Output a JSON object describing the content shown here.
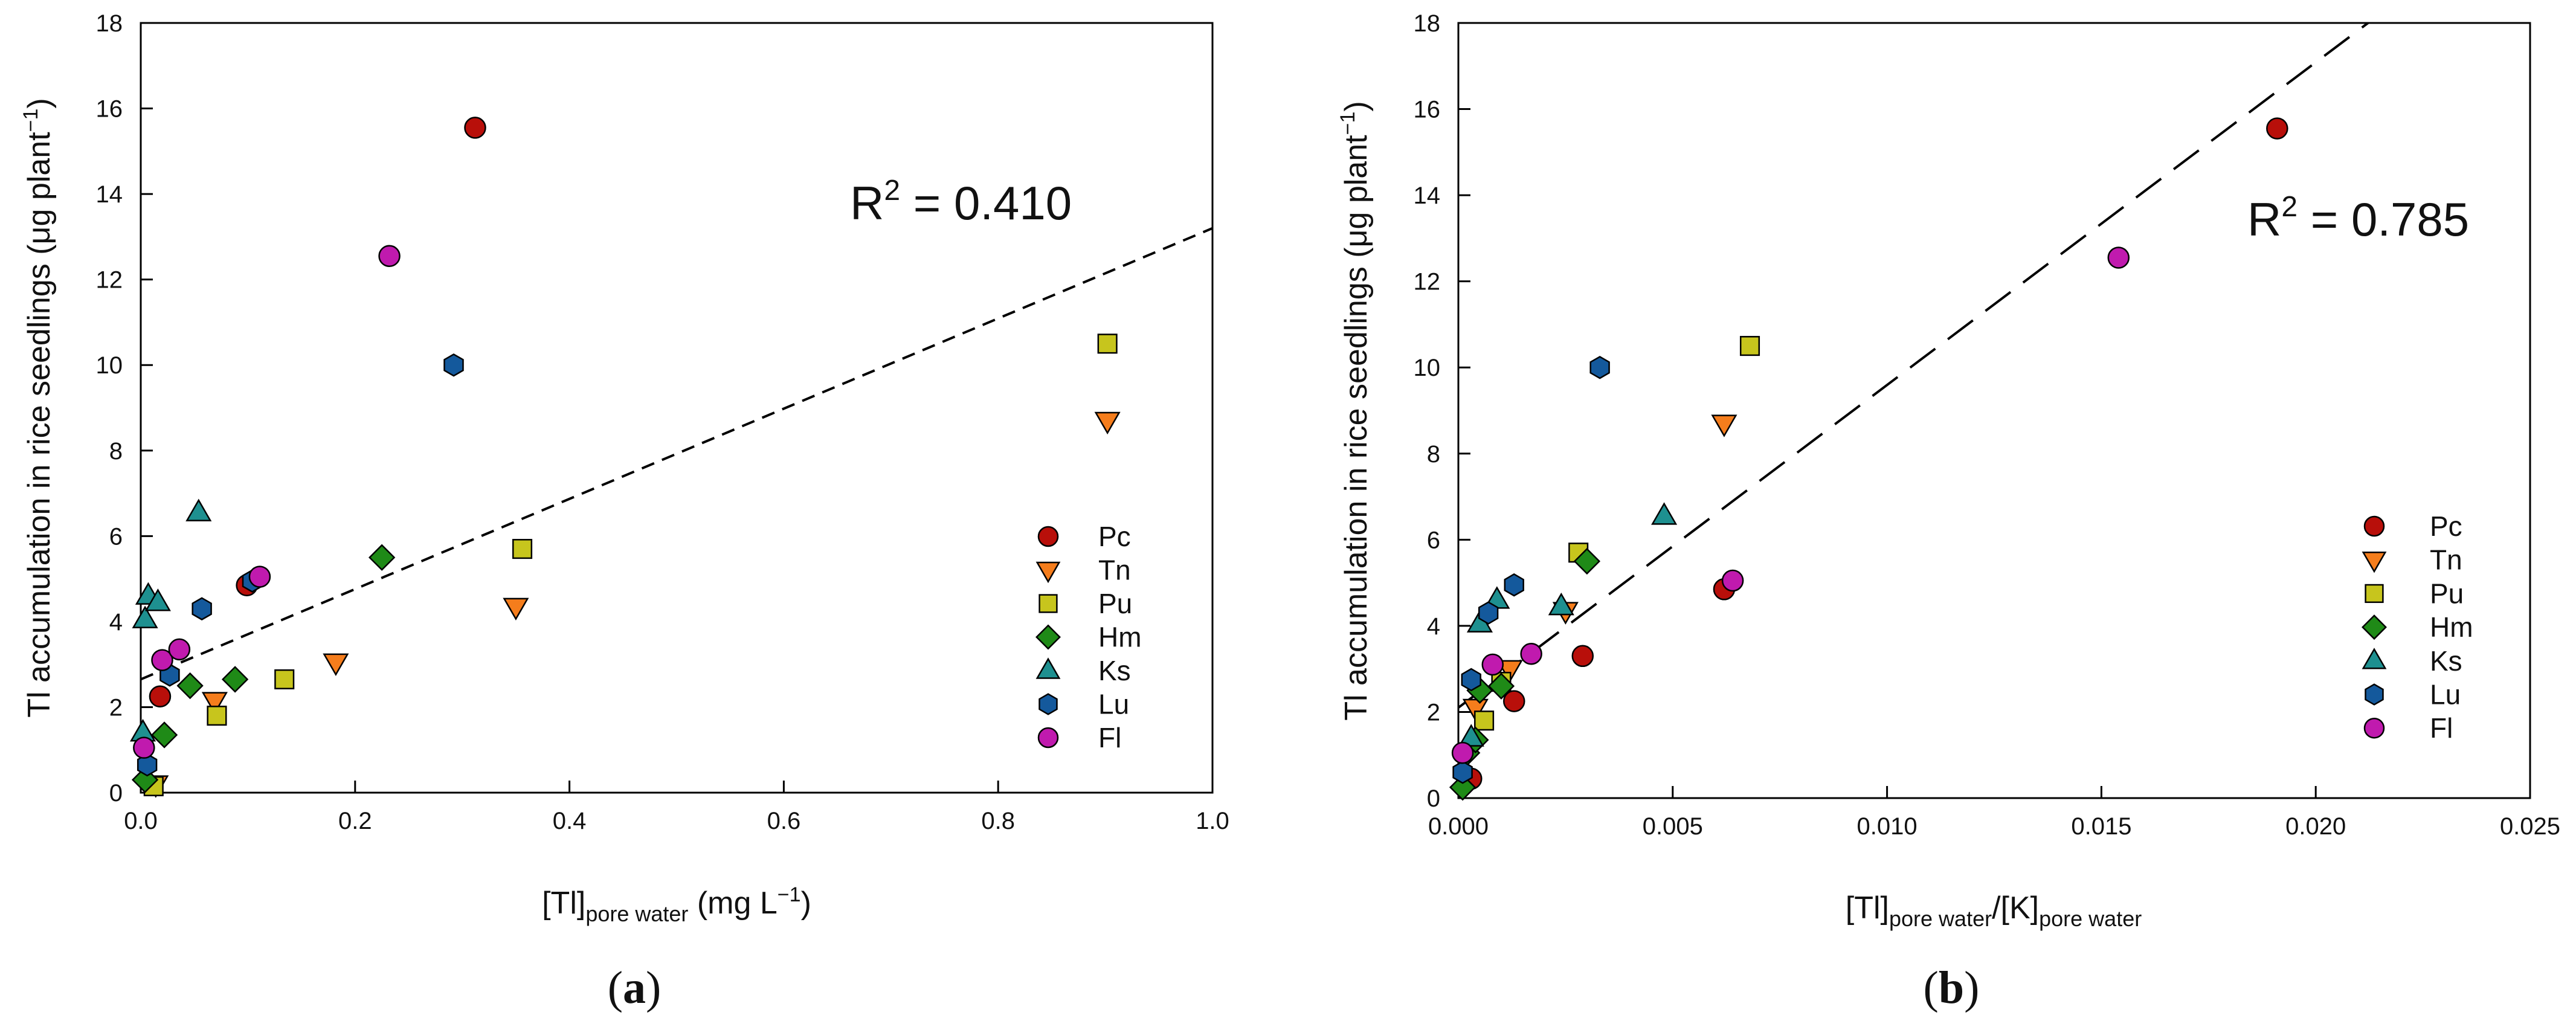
{
  "legend_labels": [
    "Pc",
    "Tn",
    "Pu",
    "Hm",
    "Ks",
    "Lu",
    "Fl"
  ],
  "colors": {
    "Pc": "#B80F0A",
    "Tn": "#F57D1C",
    "Pu": "#C7C51D",
    "Hm": "#1F8A17",
    "Ks": "#1E9090",
    "Lu": "#14599C",
    "Fl": "#C01AAE"
  },
  "markers": {
    "Pc": "circle",
    "Tn": "triangle-down",
    "Pu": "square",
    "Hm": "diamond",
    "Ks": "triangle-up",
    "Lu": "hexagon",
    "Fl": "circle"
  },
  "chart_data": [
    {
      "type": "scatter",
      "panel": "(a)",
      "panel_letter": "a",
      "xlabel_main": "[Tl]",
      "xlabel_sub": "pore water",
      "xlabel_unit": " (mg L",
      "xlabel_unit_sup": "−1",
      "xlabel_close": ")",
      "ylabel": "Tl accumulation in rice seedlings (μg plant",
      "ylabel_sup": "−1",
      "ylabel_close": ")",
      "xlim": [
        0.0,
        1.0
      ],
      "ylim": [
        0,
        18
      ],
      "xticks": [
        0.0,
        0.2,
        0.4,
        0.6,
        0.8,
        1.0
      ],
      "xtick_labels": [
        "0.0",
        "0.2",
        "0.4",
        "0.6",
        "0.8",
        "1.0"
      ],
      "yticks": [
        0,
        2,
        4,
        6,
        8,
        10,
        12,
        14,
        16,
        18
      ],
      "ytick_labels": [
        "0",
        "2",
        "4",
        "6",
        "8",
        "10",
        "12",
        "14",
        "16",
        "18"
      ],
      "r2_prefix": "R",
      "r2_sup": "2",
      "r2_value": " = 0.410",
      "fit_line": {
        "x": [
          0.0,
          1.0
        ],
        "y": [
          2.65,
          13.2
        ],
        "style": "short-dash"
      },
      "series": [
        {
          "name": "Pc",
          "points": [
            [
              0.018,
              2.25
            ],
            [
              0.099,
              4.85
            ],
            [
              0.312,
              15.55
            ]
          ]
        },
        {
          "name": "Tn",
          "points": [
            [
              0.014,
              0.2
            ],
            [
              0.069,
              2.15
            ],
            [
              0.182,
              3.05
            ],
            [
              0.35,
              4.35
            ],
            [
              0.902,
              8.7
            ]
          ]
        },
        {
          "name": "Pu",
          "points": [
            [
              0.012,
              0.15
            ],
            [
              0.071,
              1.8
            ],
            [
              0.134,
              2.65
            ],
            [
              0.356,
              5.7
            ],
            [
              0.902,
              10.5
            ]
          ]
        },
        {
          "name": "Hm",
          "points": [
            [
              0.004,
              0.3
            ],
            [
              0.022,
              1.35
            ],
            [
              0.046,
              2.5
            ],
            [
              0.088,
              2.65
            ],
            [
              0.225,
              5.5
            ]
          ]
        },
        {
          "name": "Ks",
          "points": [
            [
              0.002,
              1.4
            ],
            [
              0.004,
              4.05
            ],
            [
              0.007,
              4.6
            ],
            [
              0.016,
              4.45
            ],
            [
              0.054,
              6.55
            ]
          ]
        },
        {
          "name": "Lu",
          "points": [
            [
              0.006,
              0.65
            ],
            [
              0.027,
              2.75
            ],
            [
              0.057,
              4.3
            ],
            [
              0.104,
              4.95
            ],
            [
              0.292,
              10.0
            ]
          ]
        },
        {
          "name": "Fl",
          "points": [
            [
              0.003,
              1.05
            ],
            [
              0.02,
              3.1
            ],
            [
              0.036,
              3.35
            ],
            [
              0.111,
              5.05
            ],
            [
              0.232,
              12.55
            ]
          ]
        }
      ]
    },
    {
      "type": "scatter",
      "panel": "(b)",
      "panel_letter": "b",
      "xlabel_main": "[Tl]",
      "xlabel_sub": "pore water",
      "xlabel_mid": "/[K]",
      "xlabel_sub2": "pore water",
      "ylabel": "Tl accumulation in rice seedlings (μg plant",
      "ylabel_sup": "−1",
      "ylabel_close": ")",
      "xlim": [
        0.0,
        0.025
      ],
      "ylim": [
        0,
        18
      ],
      "xticks": [
        0.0,
        0.005,
        0.01,
        0.015,
        0.02,
        0.025
      ],
      "xtick_labels": [
        "0.000",
        "0.005",
        "0.010",
        "0.015",
        "0.020",
        "0.025"
      ],
      "yticks": [
        0,
        2,
        4,
        6,
        8,
        10,
        12,
        14,
        16,
        18
      ],
      "ytick_labels": [
        "0",
        "2",
        "4",
        "6",
        "8",
        "10",
        "12",
        "14",
        "16",
        "18"
      ],
      "r2_prefix": "R",
      "r2_sup": "2",
      "r2_value": " = 0.785",
      "fit_line": {
        "x": [
          0.0,
          0.02122
        ],
        "y": [
          2.1,
          18.0
        ],
        "style": "long-dash"
      },
      "series": [
        {
          "name": "Pc",
          "points": [
            [
              0.0003,
              0.45
            ],
            [
              0.0013,
              2.25
            ],
            [
              0.0029,
              3.3
            ],
            [
              0.0062,
              4.85
            ],
            [
              0.0191,
              15.55
            ]
          ]
        },
        {
          "name": "Tn",
          "points": [
            [
              0.0004,
              2.1
            ],
            [
              0.0012,
              3.0
            ],
            [
              0.0025,
              4.35
            ],
            [
              0.0062,
              8.7
            ]
          ]
        },
        {
          "name": "Pu",
          "points": [
            [
              0.0006,
              1.8
            ],
            [
              0.001,
              2.7
            ],
            [
              0.0028,
              5.7
            ],
            [
              0.0068,
              10.5
            ]
          ]
        },
        {
          "name": "Hm",
          "points": [
            [
              0.0001,
              0.25
            ],
            [
              0.0002,
              1.05
            ],
            [
              0.0004,
              1.35
            ],
            [
              0.0005,
              2.5
            ],
            [
              0.001,
              2.6
            ],
            [
              0.003,
              5.5
            ]
          ]
        },
        {
          "name": "Ks",
          "points": [
            [
              0.0003,
              1.4
            ],
            [
              0.0005,
              4.05
            ],
            [
              0.0009,
              4.6
            ],
            [
              0.0024,
              4.45
            ],
            [
              0.0048,
              6.55
            ]
          ]
        },
        {
          "name": "Lu",
          "points": [
            [
              0.0001,
              0.6
            ],
            [
              0.0003,
              2.75
            ],
            [
              0.0007,
              4.3
            ],
            [
              0.0013,
              4.95
            ],
            [
              0.0033,
              10.0
            ]
          ]
        },
        {
          "name": "Fl",
          "points": [
            [
              0.0001,
              1.05
            ],
            [
              0.0008,
              3.1
            ],
            [
              0.0017,
              3.35
            ],
            [
              0.0064,
              5.05
            ],
            [
              0.0154,
              12.55
            ]
          ]
        }
      ]
    }
  ]
}
